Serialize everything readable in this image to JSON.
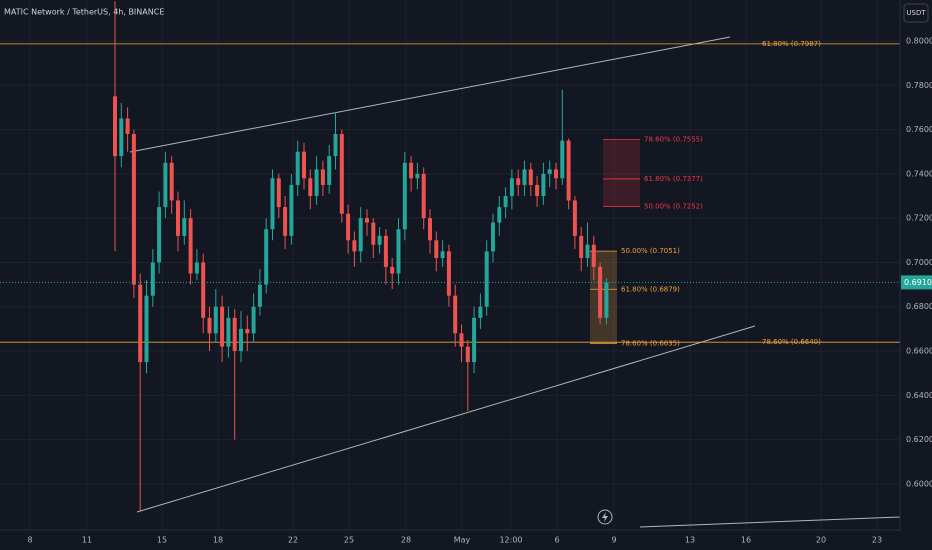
{
  "chart_data": {
    "type": "candlestick",
    "title": "MATIC Network / TetherUS, 4h, BINANCE",
    "currency": "USDT",
    "up_color": "#26a69a",
    "down_color": "#ef5350",
    "ylim": [
      0.5792,
      0.8185
    ],
    "yticks": [
      {
        "value": 0.6,
        "label": "0.6000"
      },
      {
        "value": 0.62,
        "label": "0.6200"
      },
      {
        "value": 0.64,
        "label": "0.6400"
      },
      {
        "value": 0.66,
        "label": "0.6600"
      },
      {
        "value": 0.68,
        "label": "0.6800"
      },
      {
        "value": 0.7,
        "label": "0.7000"
      },
      {
        "value": 0.72,
        "label": "0.7200"
      },
      {
        "value": 0.74,
        "label": "0.7400"
      },
      {
        "value": 0.76,
        "label": "0.7600"
      },
      {
        "value": 0.78,
        "label": "0.7800"
      },
      {
        "value": 0.8,
        "label": "0.8000"
      }
    ],
    "xtick_labels": [
      "8",
      "11",
      "15",
      "18",
      "22",
      "25",
      "28",
      "May",
      "12:00",
      "6",
      "9",
      "13",
      "16",
      "20",
      "23"
    ],
    "last_price": {
      "value": 0.691,
      "label": "0.6910"
    },
    "fib_levels": [
      {
        "label": "61.80% (0.7987)",
        "value": 0.7987
      },
      {
        "label": "78.60% (0.6640)",
        "value": 0.664
      }
    ],
    "fib_box_orange": [
      {
        "label": "50.00% (0.7051)",
        "value": 0.7051
      },
      {
        "label": "61.80% (0.6879)",
        "value": 0.6879
      },
      {
        "label": "78.60% (0.6635)",
        "value": 0.6635
      }
    ],
    "fib_box_red": [
      {
        "label": "78.60% (0.7555)",
        "value": 0.7555
      },
      {
        "label": "61.80% (0.7377)",
        "value": 0.7377
      },
      {
        "label": "50.00% (0.7252)",
        "value": 0.7252
      }
    ],
    "open": [
      0.775,
      0.748,
      0.765,
      0.758,
      0.69,
      0.655,
      0.685,
      0.7,
      0.725,
      0.745,
      0.728,
      0.712,
      0.72,
      0.695,
      0.7,
      0.675,
      0.668,
      0.68,
      0.662,
      0.675,
      0.66,
      0.67,
      0.668,
      0.68,
      0.69,
      0.715,
      0.738,
      0.725,
      0.712,
      0.735,
      0.75,
      0.738,
      0.73,
      0.742,
      0.735,
      0.748,
      0.758,
      0.722,
      0.71,
      0.705,
      0.72,
      0.718,
      0.708,
      0.712,
      0.698,
      0.695,
      0.715,
      0.745,
      0.738,
      0.74,
      0.72,
      0.71,
      0.702,
      0.705,
      0.685,
      0.668,
      0.662,
      0.655,
      0.675,
      0.68,
      0.705,
      0.718,
      0.725,
      0.73,
      0.738,
      0.735,
      0.742,
      0.735,
      0.73,
      0.74,
      0.742,
      0.738,
      0.755,
      0.728,
      0.712,
      0.702,
      0.708,
      0.698,
      0.675
    ],
    "high": [
      0.818,
      0.772,
      0.77,
      0.76,
      0.695,
      0.692,
      0.706,
      0.732,
      0.75,
      0.748,
      0.732,
      0.728,
      0.724,
      0.706,
      0.704,
      0.68,
      0.688,
      0.685,
      0.68,
      0.679,
      0.678,
      0.676,
      0.686,
      0.697,
      0.72,
      0.742,
      0.74,
      0.73,
      0.74,
      0.755,
      0.754,
      0.742,
      0.748,
      0.746,
      0.753,
      0.768,
      0.76,
      0.726,
      0.714,
      0.725,
      0.724,
      0.72,
      0.716,
      0.715,
      0.702,
      0.72,
      0.75,
      0.748,
      0.745,
      0.743,
      0.724,
      0.714,
      0.71,
      0.708,
      0.69,
      0.672,
      0.665,
      0.68,
      0.686,
      0.71,
      0.722,
      0.73,
      0.734,
      0.742,
      0.742,
      0.746,
      0.745,
      0.739,
      0.745,
      0.746,
      0.745,
      0.778,
      0.756,
      0.73,
      0.716,
      0.718,
      0.712,
      0.7,
      0.693
    ],
    "low": [
      0.705,
      0.743,
      0.75,
      0.684,
      0.588,
      0.65,
      0.68,
      0.695,
      0.72,
      0.722,
      0.705,
      0.708,
      0.69,
      0.692,
      0.668,
      0.66,
      0.664,
      0.655,
      0.657,
      0.62,
      0.655,
      0.66,
      0.664,
      0.676,
      0.686,
      0.71,
      0.72,
      0.706,
      0.708,
      0.73,
      0.733,
      0.724,
      0.726,
      0.73,
      0.731,
      0.742,
      0.718,
      0.704,
      0.698,
      0.7,
      0.712,
      0.702,
      0.704,
      0.69,
      0.688,
      0.69,
      0.71,
      0.732,
      0.733,
      0.715,
      0.704,
      0.696,
      0.698,
      0.68,
      0.662,
      0.655,
      0.633,
      0.65,
      0.67,
      0.676,
      0.7,
      0.712,
      0.72,
      0.724,
      0.73,
      0.73,
      0.73,
      0.725,
      0.726,
      0.734,
      0.733,
      0.735,
      0.724,
      0.706,
      0.696,
      0.698,
      0.692,
      0.672,
      0.672
    ],
    "close": [
      0.748,
      0.765,
      0.758,
      0.69,
      0.655,
      0.685,
      0.7,
      0.725,
      0.745,
      0.728,
      0.712,
      0.72,
      0.695,
      0.7,
      0.675,
      0.668,
      0.68,
      0.662,
      0.675,
      0.66,
      0.67,
      0.668,
      0.68,
      0.69,
      0.715,
      0.738,
      0.725,
      0.712,
      0.735,
      0.75,
      0.738,
      0.73,
      0.742,
      0.735,
      0.748,
      0.758,
      0.722,
      0.71,
      0.705,
      0.72,
      0.718,
      0.708,
      0.712,
      0.698,
      0.695,
      0.715,
      0.745,
      0.738,
      0.74,
      0.72,
      0.71,
      0.702,
      0.705,
      0.685,
      0.668,
      0.662,
      0.655,
      0.675,
      0.68,
      0.705,
      0.718,
      0.725,
      0.73,
      0.738,
      0.735,
      0.742,
      0.735,
      0.73,
      0.74,
      0.742,
      0.738,
      0.755,
      0.728,
      0.712,
      0.702,
      0.708,
      0.698,
      0.675,
      0.691
    ]
  }
}
